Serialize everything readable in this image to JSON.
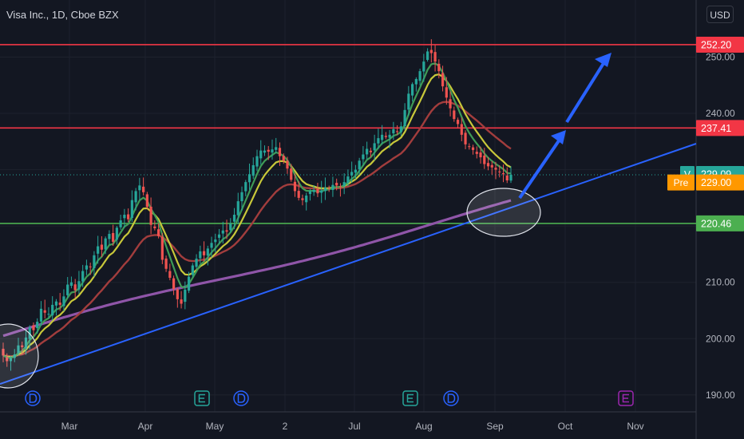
{
  "header": {
    "symbol_title": "Visa Inc., 1D, Cboe BZX",
    "currency_button": "USD"
  },
  "colors": {
    "background": "#131722",
    "up_candle": "#26a69a",
    "down_candle": "#ef5350",
    "ma_fast": "#3f9b56",
    "ma_mid": "#c8c83a",
    "ma_slow": "#a23d3d",
    "ma_200": "#8f55a8",
    "trendline": "#2962ff",
    "resistance": "#f23645",
    "support": "#4caf50"
  },
  "chart_data": {
    "type": "candlestick",
    "y_axis": {
      "ylim": [
        187.5,
        258.0
      ],
      "ticks": [
        "190.00",
        "200.00",
        "210.00",
        "220.00",
        "230.00",
        "240.00",
        "250.00"
      ]
    },
    "x_axis": {
      "ticks": [
        "Mar",
        "Apr",
        "May",
        "2",
        "Jul",
        "Aug",
        "Sep",
        "Oct",
        "Nov"
      ]
    },
    "price_labels": [
      {
        "name": "resistance-high",
        "text": "252.20",
        "value": 252.2,
        "color": "#f23645"
      },
      {
        "name": "resistance-mid",
        "text": "237.41",
        "value": 237.41,
        "color": "#f23645"
      },
      {
        "name": "last-price",
        "prefix": "V",
        "text": "229.09",
        "value": 229.09,
        "color": "#26a69a"
      },
      {
        "name": "pre-market",
        "prefix": "Pre",
        "text": "229.00",
        "value": 229.0,
        "color": "#ff9800"
      },
      {
        "name": "support",
        "text": "220.46",
        "value": 220.46,
        "color": "#4caf50"
      }
    ],
    "horizontal_lines": [
      {
        "value": 252.2,
        "color": "#f23645"
      },
      {
        "value": 237.41,
        "color": "#f23645"
      },
      {
        "value": 220.46,
        "color": "#4caf50"
      }
    ],
    "dotted_price_line": 229.09,
    "closes": [
      197.0,
      196.0,
      196.5,
      197.2,
      198.8,
      198.5,
      200.2,
      202.0,
      201.5,
      203.0,
      205.3,
      204.6,
      204.4,
      206.0,
      206.6,
      206.0,
      207.5,
      209.6,
      210.0,
      208.6,
      210.2,
      212.0,
      213.0,
      212.8,
      214.8,
      216.4,
      215.8,
      217.8,
      218.6,
      217.2,
      219.7,
      221.0,
      222.0,
      221.2,
      224.6,
      226.2,
      227.2,
      226.0,
      223.4,
      220.2,
      219.6,
      218.2,
      214.0,
      212.4,
      210.8,
      208.8,
      207.0,
      206.2,
      208.7,
      211.0,
      213.0,
      214.2,
      215.5,
      214.8,
      216.0,
      217.0,
      217.6,
      218.5,
      219.2,
      219.0,
      220.4,
      222.0,
      224.4,
      226.0,
      227.8,
      229.2,
      230.8,
      232.4,
      233.4,
      233.4,
      233.2,
      233.6,
      234.0,
      232.4,
      231.6,
      230.2,
      228.2,
      226.2,
      225.0,
      224.6,
      225.4,
      226.2,
      226.4,
      225.8,
      226.3,
      226.8,
      226.7,
      227.3,
      227.2,
      227.0,
      227.8,
      228.8,
      229.6,
      230.0,
      231.6,
      232.7,
      233.7,
      233.1,
      234.7,
      235.6,
      236.2,
      235.8,
      236.2,
      237.2,
      236.7,
      237.7,
      240.6,
      243.5,
      245.2,
      246.1,
      247.5,
      249.2,
      251.0,
      250.7,
      249.2,
      247.5,
      244.8,
      242.8,
      240.9,
      239.0,
      238.1,
      236.2,
      234.5,
      234.1,
      233.5,
      232.8,
      232.2,
      231.0,
      230.6,
      230.4,
      230.0,
      229.6,
      229.2,
      228.1,
      229.09
    ]
  }
}
